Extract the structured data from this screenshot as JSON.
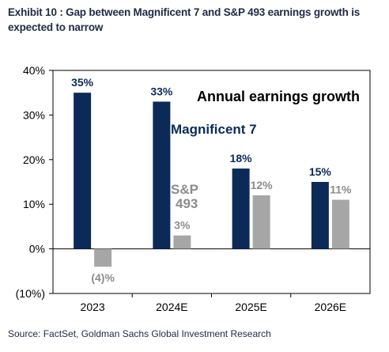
{
  "header": {
    "title": "Exhibit 10 : Gap between Magnificent 7 and S&P 493 earnings growth is expected to narrow"
  },
  "footer": {
    "source": "Source: FactSet, Goldman Sachs Global Investment Research"
  },
  "chart_data": {
    "type": "bar",
    "title": "Annual earnings growth",
    "categories": [
      "2023",
      "2024E",
      "2025E",
      "2026E"
    ],
    "ylim": [
      -10,
      40
    ],
    "yticks": [
      -10,
      0,
      10,
      20,
      30,
      40
    ],
    "ytick_labels": [
      "(10%)",
      "0%",
      "10%",
      "20%",
      "30%",
      "40%"
    ],
    "grid": false,
    "series": [
      {
        "name": "Magnificent 7",
        "values": [
          35,
          33,
          18,
          15
        ],
        "labels": [
          "35%",
          "33%",
          "18%",
          "15%"
        ],
        "color": "#0b2a57"
      },
      {
        "name": "S&P 493",
        "values": [
          -4,
          3,
          12,
          11
        ],
        "labels": [
          "(4)%",
          "3%",
          "12%",
          "11%"
        ],
        "color": "#a6a6a6"
      }
    ],
    "series_name_labels": [
      "Magnificent 7",
      "S&P",
      "493"
    ]
  }
}
